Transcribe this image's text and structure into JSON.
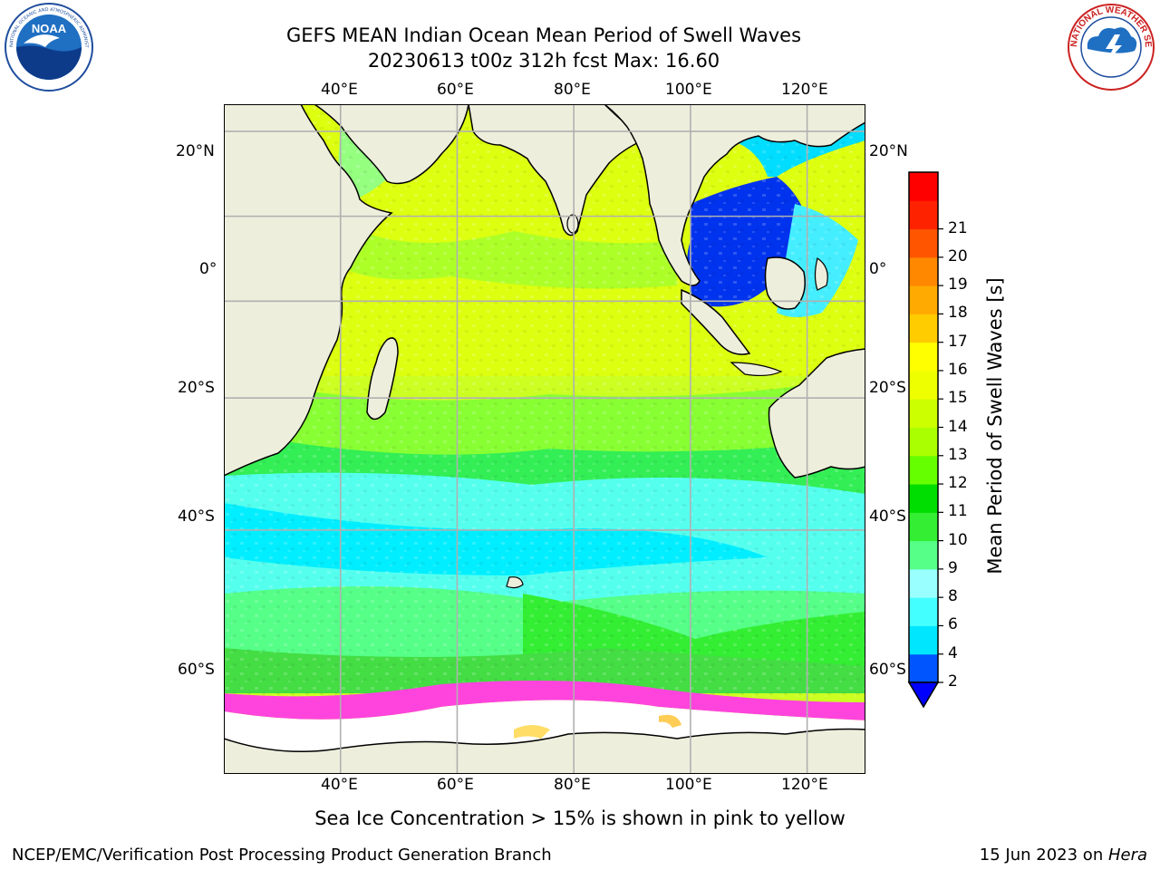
{
  "header": {
    "title_line1": "GEFS MEAN Indian Ocean Mean Period of Swell Waves",
    "title_line2": "20230613 t00z 312h fcst   Max: 16.60"
  },
  "logos": {
    "noaa_text": "NOAA",
    "nws_text": "NATIONAL WEATHER SERVICE"
  },
  "map": {
    "lon_labels": [
      "40°E",
      "60°E",
      "80°E",
      "100°E",
      "120°E"
    ],
    "lat_labels": [
      "20°N",
      "0°",
      "20°S",
      "40°S",
      "60°S"
    ],
    "lon_values": [
      40,
      60,
      80,
      100,
      120
    ],
    "lat_values": [
      20,
      0,
      -20,
      -40,
      -60
    ],
    "lon_range": [
      20,
      130
    ],
    "lat_range": [
      -79,
      26
    ],
    "gridlines": true,
    "colors": {
      "land": "#eeeedd",
      "ocean_default": "#ccff22",
      "sea_ice": "#ffffff",
      "ice_edge": "#ff33cc",
      "gridline": "#b0b0b0",
      "coastline": "#000000"
    }
  },
  "colorbar": {
    "label": "Mean Period of Swell Waves [s]",
    "tick_labels": [
      "2",
      "4",
      "6",
      "8",
      "9",
      "10",
      "11",
      "12",
      "13",
      "14",
      "15",
      "16",
      "17",
      "18",
      "19",
      "20",
      "21"
    ],
    "colors": [
      "#0055ff",
      "#00e6ff",
      "#44ffff",
      "#99ffff",
      "#55ff88",
      "#33ee33",
      "#00dd00",
      "#66ff00",
      "#aaff00",
      "#ccff00",
      "#eeff00",
      "#ffff00",
      "#ffcc00",
      "#ffaa00",
      "#ff8800",
      "#ff5500",
      "#ff2200",
      "#ff0000"
    ],
    "under_color": "#0000ff"
  },
  "caption": "Sea Ice Concentration > 15% is shown in pink to yellow",
  "footer": {
    "left": "NCEP/EMC/Verification Post Processing Product Generation Branch",
    "date": "15 Jun 2023 on ",
    "machine": "Hera"
  }
}
